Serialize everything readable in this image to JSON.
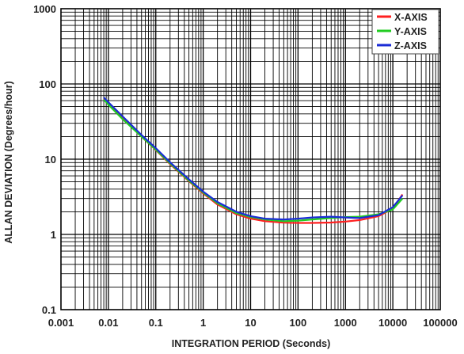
{
  "chart_data": {
    "type": "line",
    "title": "",
    "xlabel": "INTEGRATION PERIOD (Seconds)",
    "ylabel": "ALLAN DEVIATION (Degrees/hour)",
    "x_scale": "log",
    "y_scale": "log",
    "xlim": [
      0.001,
      100000
    ],
    "ylim": [
      0.1,
      1000
    ],
    "x_ticks": [
      "0.001",
      "0.01",
      "0.1",
      "1",
      "10",
      "100",
      "1000",
      "10000",
      "100000"
    ],
    "y_ticks": [
      "0.1",
      "1",
      "10",
      "100",
      "1000"
    ],
    "grid": true,
    "legend_position": "top-right",
    "series": [
      {
        "name": "X-AXIS",
        "color": "#ff2020",
        "points": [
          [
            0.008,
            63
          ],
          [
            0.01,
            54
          ],
          [
            0.02,
            35
          ],
          [
            0.05,
            20
          ],
          [
            0.1,
            13.2
          ],
          [
            0.2,
            8.6
          ],
          [
            0.5,
            5.1
          ],
          [
            1,
            3.5
          ],
          [
            2,
            2.5
          ],
          [
            5,
            1.85
          ],
          [
            10,
            1.62
          ],
          [
            20,
            1.5
          ],
          [
            50,
            1.43
          ],
          [
            100,
            1.42
          ],
          [
            200,
            1.42
          ],
          [
            500,
            1.44
          ],
          [
            1000,
            1.48
          ],
          [
            2000,
            1.55
          ],
          [
            5000,
            1.75
          ],
          [
            10000,
            2.2
          ],
          [
            16000,
            3.4
          ]
        ]
      },
      {
        "name": "Y-AXIS",
        "color": "#22cc22",
        "points": [
          [
            0.008,
            62
          ],
          [
            0.01,
            53
          ],
          [
            0.02,
            34
          ],
          [
            0.05,
            20
          ],
          [
            0.1,
            13.4
          ],
          [
            0.2,
            8.8
          ],
          [
            0.5,
            5.2
          ],
          [
            1,
            3.6
          ],
          [
            2,
            2.6
          ],
          [
            5,
            1.92
          ],
          [
            10,
            1.7
          ],
          [
            20,
            1.58
          ],
          [
            50,
            1.5
          ],
          [
            100,
            1.52
          ],
          [
            200,
            1.58
          ],
          [
            500,
            1.65
          ],
          [
            1000,
            1.7
          ],
          [
            2000,
            1.72
          ],
          [
            5000,
            1.85
          ],
          [
            10000,
            2.15
          ],
          [
            16000,
            3.0
          ]
        ]
      },
      {
        "name": "Z-AXIS",
        "color": "#1a2bd6",
        "points": [
          [
            0.008,
            66
          ],
          [
            0.01,
            57
          ],
          [
            0.02,
            37
          ],
          [
            0.05,
            21
          ],
          [
            0.1,
            14
          ],
          [
            0.2,
            9.1
          ],
          [
            0.5,
            5.4
          ],
          [
            1,
            3.7
          ],
          [
            2,
            2.7
          ],
          [
            5,
            2.0
          ],
          [
            10,
            1.75
          ],
          [
            20,
            1.62
          ],
          [
            50,
            1.58
          ],
          [
            100,
            1.62
          ],
          [
            200,
            1.68
          ],
          [
            500,
            1.72
          ],
          [
            1000,
            1.68
          ],
          [
            2000,
            1.65
          ],
          [
            5000,
            1.8
          ],
          [
            10000,
            2.3
          ],
          [
            16000,
            3.3
          ]
        ]
      }
    ]
  }
}
